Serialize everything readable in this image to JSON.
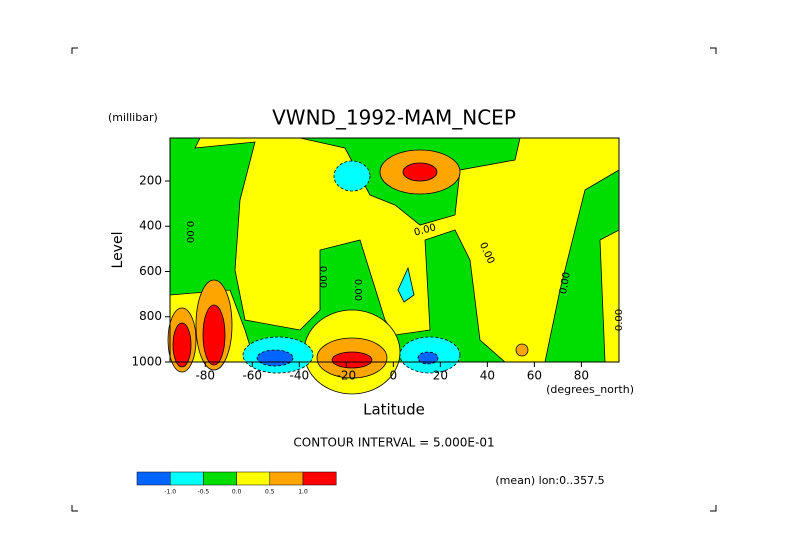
{
  "chart_data": {
    "type": "contour",
    "title": "VWND_1992-MAM_NCEP",
    "y_unit": "(millibar)",
    "y_label": "Level",
    "x_label": "Latitude",
    "x_unit": "(degrees_north)",
    "xlim": [
      -95,
      96
    ],
    "xticks": [
      -80,
      -60,
      -40,
      -20,
      0,
      20,
      40,
      60,
      80
    ],
    "ylim": [
      1000,
      10
    ],
    "yticks": [
      200,
      400,
      600,
      800,
      1000
    ],
    "contour_labels": [
      "0.00",
      "0.00",
      "0.00",
      "0.00",
      "0.00",
      "0.00",
      "0.00"
    ],
    "contour_interval": "CONTOUR INTERVAL = 5.000E-01",
    "footer": "(mean) lon:0..357.5",
    "colorbar": {
      "levels": [
        {
          "value": -1,
          "label": "-1.0"
        },
        {
          "value": -0.5,
          "label": "-0.5"
        },
        {
          "value": 0,
          "label": "0.0"
        },
        {
          "value": 0.5,
          "label": "0.5"
        },
        {
          "value": 1,
          "label": "1.0"
        }
      ],
      "colors": [
        "#0064ff",
        "#00ffff",
        "#00dd00",
        "#ffff00",
        "#ffa500",
        "#ff0000"
      ]
    }
  }
}
